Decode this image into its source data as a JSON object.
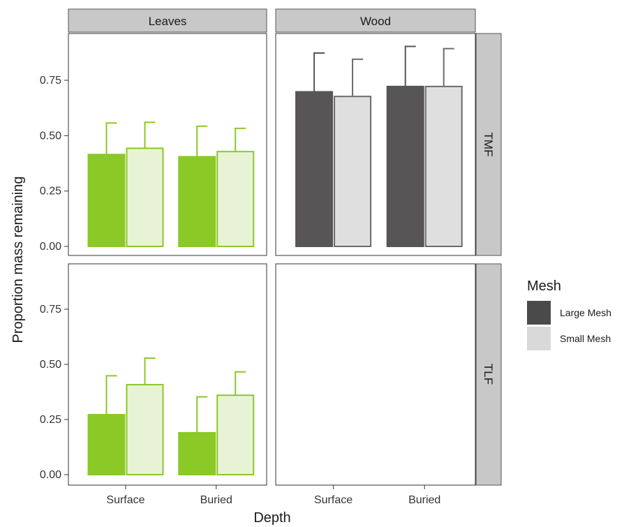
{
  "chart_data": {
    "type": "bar",
    "layout": "facet_grid",
    "xlabel": "Depth",
    "ylabel": "Proportion mass remaining",
    "ylim": [
      0,
      0.95
    ],
    "yticks": [
      0,
      0.25,
      0.5,
      0.75
    ],
    "ytick_labels": [
      "0.00",
      "0.25",
      "0.50",
      "0.75"
    ],
    "categories": [
      "Surface",
      "Buried"
    ],
    "column_facets": [
      "Leaves",
      "Wood"
    ],
    "row_facets": [
      "TMF",
      "TLF"
    ],
    "legend": {
      "title": "Mesh",
      "position": "right",
      "items": [
        {
          "label": "Large Mesh",
          "color": "#4a4a4a"
        },
        {
          "label": "Small Mesh",
          "color": "#d9d9d9"
        }
      ]
    },
    "colors": {
      "Leaves": {
        "Large Mesh": {
          "fill": "#8ac926",
          "stroke": "#8ac926"
        },
        "Small Mesh": {
          "fill": "#e8f3d6",
          "stroke": "#8ac926"
        }
      },
      "Wood": {
        "Large Mesh": {
          "fill": "#575555",
          "stroke": "#575555"
        },
        "Small Mesh": {
          "fill": "#e0dfe0",
          "stroke": "#6b6b6b"
        }
      }
    },
    "panels": [
      {
        "row": "TMF",
        "col": "Leaves",
        "series": [
          {
            "name": "Large Mesh",
            "values": [
              0.415,
              0.405
            ],
            "error_upper": [
              0.557,
              0.543
            ]
          },
          {
            "name": "Small Mesh",
            "values": [
              0.443,
              0.428
            ],
            "error_upper": [
              0.56,
              0.533
            ]
          }
        ]
      },
      {
        "row": "TMF",
        "col": "Wood",
        "series": [
          {
            "name": "Large Mesh",
            "values": [
              0.698,
              0.722
            ],
            "error_upper": [
              0.873,
              0.903
            ]
          },
          {
            "name": "Small Mesh",
            "values": [
              0.677,
              0.722
            ],
            "error_upper": [
              0.845,
              0.893
            ]
          }
        ]
      },
      {
        "row": "TLF",
        "col": "Leaves",
        "series": [
          {
            "name": "Large Mesh",
            "values": [
              0.272,
              0.19
            ],
            "error_upper": [
              0.448,
              0.353
            ]
          },
          {
            "name": "Small Mesh",
            "values": [
              0.408,
              0.36
            ],
            "error_upper": [
              0.528,
              0.466
            ]
          }
        ]
      },
      {
        "row": "TLF",
        "col": "Wood",
        "series": []
      }
    ]
  }
}
